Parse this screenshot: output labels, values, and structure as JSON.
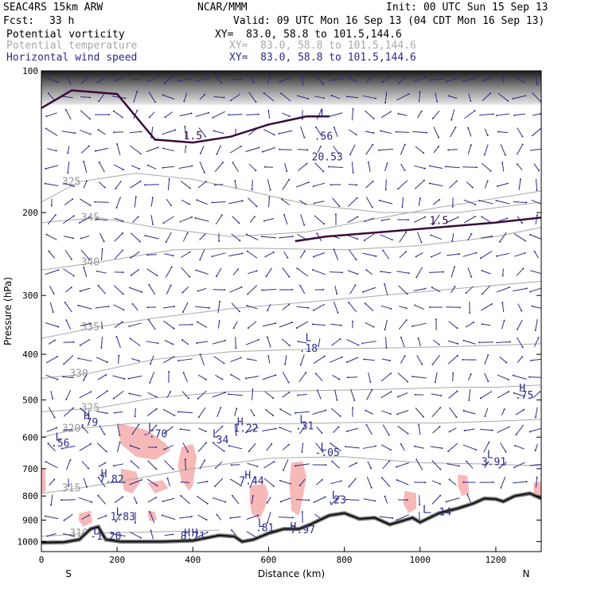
{
  "header": {
    "model": "SEAC4RS 15km ARW",
    "org": "NCAR/MMM",
    "init": "Init: 00 UTC Sun 15 Sep 13",
    "fcst_label": "Fcst:",
    "fcst_value": "33 h",
    "valid": "Valid: 09 UTC Mon 16 Sep 13 (04 CDT Mon 16 Sep 13)",
    "fields": [
      {
        "name": "Potential vorticity",
        "xy": "XY=  83.0, 58.8 to 101.5,144.6",
        "color": "#000000"
      },
      {
        "name": "Potential temperature",
        "xy": "XY=  83.0, 58.8 to 101.5,144.6",
        "color": "#a8a8a8"
      },
      {
        "name": "Horizontal wind speed",
        "xy": "XY=  83.0, 58.8 to 101.5,144.6",
        "color": "#2b2b8a"
      }
    ]
  },
  "chart_data": {
    "type": "cross-section",
    "xlabel": "Distance (km)",
    "ylabel": "Pressure (hPa)",
    "xlim": [
      0,
      1320
    ],
    "ylim": [
      100,
      1050
    ],
    "y_scale": "log",
    "x_ticks": [
      0,
      200,
      400,
      600,
      800,
      1000,
      1200
    ],
    "y_ticks": [
      100,
      200,
      300,
      400,
      500,
      600,
      700,
      800,
      900,
      1000
    ],
    "endpoints": {
      "left": "S",
      "right": "N"
    },
    "colors": {
      "pv_line": "#3a0a3a",
      "theta": "#a8a8a8",
      "wind": "#2b2b8a",
      "pv_fill": "#f7b8b8",
      "terrain": "#000000"
    },
    "theta_contours": [
      {
        "value": "325",
        "pts": [
          [
            0,
            190
          ],
          [
            100,
            172
          ],
          [
            250,
            165
          ],
          [
            400,
            170
          ],
          [
            550,
            180
          ],
          [
            700,
            192
          ],
          [
            900,
            200
          ],
          [
            1100,
            200
          ],
          [
            1320,
            190
          ]
        ]
      },
      {
        "value": "345",
        "pts": [
          [
            0,
            210
          ],
          [
            150,
            205
          ],
          [
            300,
            215
          ],
          [
            500,
            225
          ],
          [
            700,
            220
          ],
          [
            900,
            205
          ],
          [
            1050,
            195
          ],
          [
            1320,
            180
          ]
        ]
      },
      {
        "value": "340",
        "pts": [
          [
            0,
            265
          ],
          [
            150,
            255
          ],
          [
            350,
            240
          ],
          [
            550,
            238
          ],
          [
            800,
            240
          ],
          [
            1000,
            235
          ],
          [
            1200,
            225
          ],
          [
            1320,
            215
          ]
        ]
      },
      {
        "value": "335",
        "pts": [
          [
            0,
            370
          ],
          [
            150,
            350
          ],
          [
            300,
            335
          ],
          [
            500,
            320
          ],
          [
            700,
            310
          ],
          [
            900,
            300
          ],
          [
            1100,
            290
          ],
          [
            1320,
            280
          ]
        ]
      },
      {
        "value": "330",
        "pts": [
          [
            0,
            450
          ],
          [
            120,
            440
          ],
          [
            300,
            410
          ],
          [
            500,
            395
          ],
          [
            700,
            390
          ],
          [
            900,
            388
          ],
          [
            1100,
            385
          ],
          [
            1320,
            380
          ]
        ]
      },
      {
        "value": "325",
        "pts": [
          [
            0,
            530
          ],
          [
            150,
            520
          ],
          [
            300,
            495
          ],
          [
            500,
            480
          ],
          [
            700,
            478
          ],
          [
            900,
            475
          ],
          [
            1100,
            470
          ],
          [
            1200,
            470
          ],
          [
            1320,
            465
          ]
        ]
      },
      {
        "value": "320",
        "pts": [
          [
            0,
            600
          ],
          [
            100,
            575
          ],
          [
            250,
            560
          ],
          [
            450,
            560
          ],
          [
            650,
            562
          ],
          [
            850,
            558
          ],
          [
            1050,
            560
          ],
          [
            1200,
            555
          ],
          [
            1320,
            550
          ]
        ]
      },
      {
        "value": "315",
        "pts": [
          [
            0,
            790
          ],
          [
            100,
            770
          ],
          [
            250,
            735
          ],
          [
            400,
            700
          ],
          [
            600,
            665
          ],
          [
            800,
            660
          ],
          [
            1000,
            680
          ],
          [
            1200,
            685
          ],
          [
            1320,
            690
          ]
        ]
      },
      {
        "value": "310",
        "pts": [
          [
            0,
            975
          ],
          [
            120,
            960
          ],
          [
            250,
            955
          ],
          [
            400,
            950
          ],
          [
            470,
            945
          ]
        ]
      }
    ],
    "pv_contours": [
      {
        "value": "1.5",
        "pts": [
          [
            0,
            120
          ],
          [
            80,
            110
          ],
          [
            200,
            112
          ],
          [
            300,
            140
          ],
          [
            400,
            142
          ],
          [
            500,
            138
          ],
          [
            600,
            130
          ],
          [
            700,
            125
          ],
          [
            760,
            125
          ]
        ]
      },
      {
        "value": "1.5",
        "pts": [
          [
            670,
            230
          ],
          [
            750,
            225
          ],
          [
            900,
            220
          ],
          [
            1050,
            215
          ],
          [
            1200,
            210
          ],
          [
            1320,
            205
          ]
        ]
      }
    ],
    "pv_regions": [
      {
        "pts": [
          [
            200,
            560
          ],
          [
            280,
            580
          ],
          [
            330,
            620
          ],
          [
            340,
            640
          ],
          [
            300,
            670
          ],
          [
            250,
            660
          ],
          [
            210,
            620
          ]
        ]
      },
      {
        "pts": [
          [
            370,
            630
          ],
          [
            400,
            620
          ],
          [
            410,
            660
          ],
          [
            400,
            760
          ],
          [
            390,
            780
          ],
          [
            370,
            740
          ],
          [
            360,
            690
          ]
        ]
      },
      {
        "pts": [
          [
            210,
            700
          ],
          [
            250,
            710
          ],
          [
            260,
            750
          ],
          [
            240,
            790
          ],
          [
            220,
            780
          ],
          [
            210,
            740
          ]
        ]
      },
      {
        "pts": [
          [
            280,
            750
          ],
          [
            320,
            740
          ],
          [
            335,
            770
          ],
          [
            300,
            790
          ]
        ]
      },
      {
        "pts": [
          [
            550,
            760
          ],
          [
            590,
            755
          ],
          [
            600,
            790
          ],
          [
            590,
            850
          ],
          [
            575,
            900
          ],
          [
            555,
            870
          ],
          [
            550,
            820
          ]
        ]
      },
      {
        "pts": [
          [
            660,
            680
          ],
          [
            690,
            675
          ],
          [
            700,
            730
          ],
          [
            690,
            810
          ],
          [
            680,
            880
          ],
          [
            660,
            860
          ],
          [
            655,
            760
          ]
        ]
      },
      {
        "pts": [
          [
            960,
            780
          ],
          [
            990,
            790
          ],
          [
            990,
            850
          ],
          [
            970,
            870
          ],
          [
            955,
            830
          ]
        ]
      },
      {
        "pts": [
          [
            1100,
            720
          ],
          [
            1125,
            725
          ],
          [
            1130,
            790
          ],
          [
            1110,
            800
          ],
          [
            1100,
            760
          ]
        ]
      },
      {
        "pts": [
          [
            100,
            870
          ],
          [
            130,
            860
          ],
          [
            135,
            910
          ],
          [
            110,
            930
          ],
          [
            98,
            900
          ]
        ]
      },
      {
        "pts": [
          [
            280,
            860
          ],
          [
            300,
            865
          ],
          [
            305,
            900
          ],
          [
            285,
            905
          ]
        ]
      },
      {
        "pts": [
          [
            0,
            700
          ],
          [
            10,
            700
          ],
          [
            12,
            780
          ],
          [
            0,
            790
          ]
        ]
      },
      {
        "pts": [
          [
            1300,
            750
          ],
          [
            1320,
            745
          ],
          [
            1320,
            800
          ],
          [
            1300,
            800
          ]
        ]
      }
    ],
    "terrain": [
      [
        0,
        1005
      ],
      [
        60,
        1003
      ],
      [
        100,
        990
      ],
      [
        130,
        940
      ],
      [
        150,
        930
      ],
      [
        170,
        990
      ],
      [
        210,
        1000
      ],
      [
        320,
        1000
      ],
      [
        400,
        995
      ],
      [
        470,
        970
      ],
      [
        510,
        975
      ],
      [
        530,
        1000
      ],
      [
        560,
        990
      ],
      [
        600,
        960
      ],
      [
        640,
        940
      ],
      [
        680,
        940
      ],
      [
        710,
        920
      ],
      [
        760,
        880
      ],
      [
        800,
        870
      ],
      [
        840,
        895
      ],
      [
        880,
        890
      ],
      [
        920,
        920
      ],
      [
        950,
        905
      ],
      [
        980,
        890
      ],
      [
        1000,
        910
      ],
      [
        1050,
        870
      ],
      [
        1100,
        850
      ],
      [
        1140,
        830
      ],
      [
        1170,
        810
      ],
      [
        1200,
        812
      ],
      [
        1220,
        822
      ],
      [
        1250,
        800
      ],
      [
        1290,
        790
      ],
      [
        1320,
        810
      ]
    ],
    "labels": [
      {
        "text": "L",
        "x": 745,
        "y": 125
      },
      {
        "text": ".56",
        "x": 745,
        "y": 140
      },
      {
        "text": "20.53",
        "x": 755,
        "y": 155
      },
      {
        "text": "L",
        "x": 705,
        "y": 375
      },
      {
        "text": ".18",
        "x": 705,
        "y": 395
      },
      {
        "text": "H",
        "x": 1270,
        "y": 480
      },
      {
        "text": ".75",
        "x": 1275,
        "y": 497
      },
      {
        "text": "H",
        "x": 120,
        "y": 550
      },
      {
        "text": ".79",
        "x": 125,
        "y": 568
      },
      {
        "text": "L",
        "x": 290,
        "y": 582
      },
      {
        "text": "-.70",
        "x": 300,
        "y": 600
      },
      {
        "text": "H",
        "x": 525,
        "y": 567
      },
      {
        "text": "1.22",
        "x": 540,
        "y": 585
      },
      {
        "text": "L",
        "x": 690,
        "y": 560
      },
      {
        "text": ".31",
        "x": 695,
        "y": 578
      },
      {
        "text": "L",
        "x": 45,
        "y": 610
      },
      {
        "text": ".56",
        "x": 50,
        "y": 628
      },
      {
        "text": "L",
        "x": 460,
        "y": 600
      },
      {
        "text": ".34",
        "x": 470,
        "y": 618
      },
      {
        "text": "L",
        "x": 745,
        "y": 640
      },
      {
        "text": "-.05",
        "x": 755,
        "y": 658
      },
      {
        "text": "L",
        "x": 1185,
        "y": 665
      },
      {
        "text": "3.91",
        "x": 1195,
        "y": 688
      },
      {
        "text": "H",
        "x": 165,
        "y": 730
      },
      {
        "text": "7.82",
        "x": 185,
        "y": 750
      },
      {
        "text": "H",
        "x": 545,
        "y": 735
      },
      {
        "text": "7.44",
        "x": 555,
        "y": 755
      },
      {
        "text": "L",
        "x": 775,
        "y": 810
      },
      {
        "text": ".23",
        "x": 780,
        "y": 830
      },
      {
        "text": "L",
        "x": 1015,
        "y": 870
      },
      {
        "text": "-.14",
        "x": 1050,
        "y": 880
      },
      {
        "text": "L",
        "x": 205,
        "y": 880
      },
      {
        "text": "1.83",
        "x": 215,
        "y": 900
      },
      {
        "text": "L",
        "x": 580,
        "y": 930
      },
      {
        "text": ".81",
        "x": 590,
        "y": 950
      },
      {
        "text": "H",
        "x": 665,
        "y": 945
      },
      {
        "text": "7.97",
        "x": 690,
        "y": 960
      },
      {
        "text": "L",
        "x": 145,
        "y": 965
      },
      {
        "text": "-1.20",
        "x": 170,
        "y": 990
      },
      {
        "text": "H",
        "x": 385,
        "y": 975
      },
      {
        "text": "H",
        "x": 405,
        "y": 975
      },
      {
        "text": "8.71",
        "x": 400,
        "y": 990
      }
    ]
  }
}
